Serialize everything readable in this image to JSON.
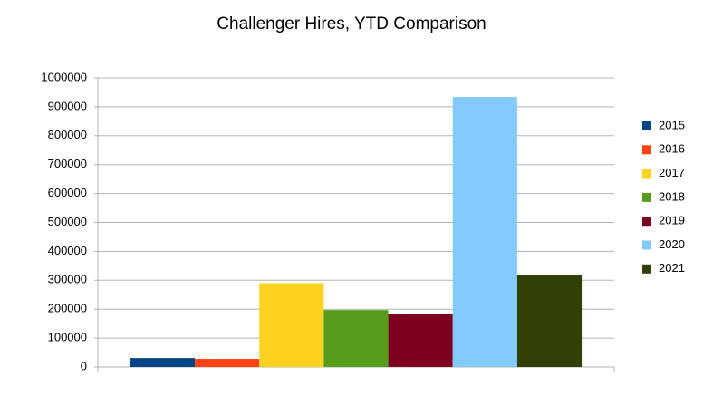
{
  "chart_data": {
    "type": "bar",
    "title": "Challenger Hires, YTD Comparison",
    "categories": [
      null
    ],
    "series": [
      {
        "name": "2015",
        "color": "#004586",
        "values": [
          31000
        ]
      },
      {
        "name": "2016",
        "color": "#ff420e",
        "values": [
          28000
        ]
      },
      {
        "name": "2017",
        "color": "#ffd320",
        "values": [
          290000
        ]
      },
      {
        "name": "2018",
        "color": "#579d1c",
        "values": [
          197000
        ]
      },
      {
        "name": "2019",
        "color": "#7e0021",
        "values": [
          185000
        ]
      },
      {
        "name": "2020",
        "color": "#83caff",
        "values": [
          934000
        ]
      },
      {
        "name": "2021",
        "color": "#314004",
        "values": [
          317000
        ]
      }
    ],
    "ylim": [
      0,
      1000000
    ],
    "yticks": [
      0,
      100000,
      200000,
      300000,
      400000,
      500000,
      600000,
      700000,
      800000,
      900000,
      1000000
    ],
    "grid": true,
    "legend": "right"
  }
}
